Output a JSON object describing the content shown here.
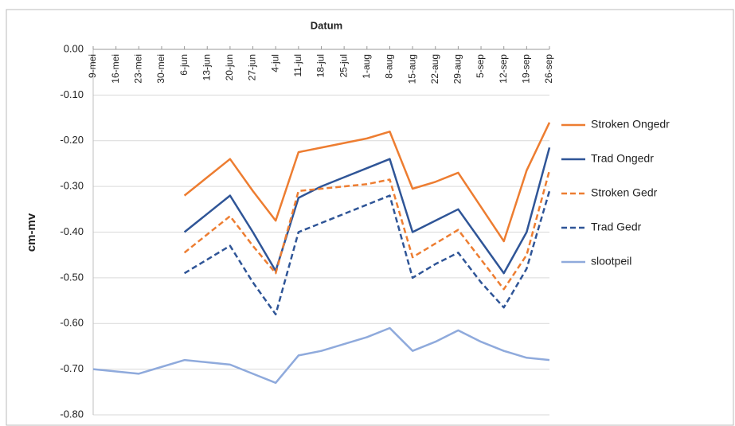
{
  "chart_data": {
    "type": "line",
    "x_label": "Datum",
    "y_label": "cm-mv",
    "categories": [
      "9-mei",
      "16-mei",
      "23-mei",
      "30-mei",
      "6-jun",
      "13-jun",
      "20-jun",
      "27-jun",
      "4-jul",
      "11-jul",
      "18-jul",
      "25-jul",
      "1-aug",
      "8-aug",
      "15-aug",
      "22-aug",
      "29-aug",
      "5-sep",
      "12-sep",
      "19-sep",
      "26-sep"
    ],
    "series": [
      {
        "name": "Stroken Ongedr",
        "color": "#ed7d31",
        "dash": false,
        "values": [
          null,
          null,
          null,
          null,
          -0.32,
          -0.28,
          -0.24,
          -0.31,
          -0.375,
          -0.225,
          -0.215,
          -0.205,
          -0.195,
          -0.18,
          -0.305,
          -0.29,
          -0.27,
          -0.345,
          -0.42,
          -0.265,
          -0.16
        ]
      },
      {
        "name": "Trad Ongedr",
        "color": "#2f5597",
        "dash": false,
        "values": [
          null,
          null,
          null,
          null,
          -0.4,
          -0.36,
          -0.32,
          -0.4,
          -0.485,
          -0.325,
          -0.3,
          -0.28,
          -0.26,
          -0.24,
          -0.4,
          -0.375,
          -0.35,
          -0.42,
          -0.49,
          -0.4,
          -0.215
        ]
      },
      {
        "name": "Stroken Gedr",
        "color": "#ed7d31",
        "dash": true,
        "values": [
          null,
          null,
          null,
          null,
          -0.445,
          -0.405,
          -0.365,
          -0.43,
          -0.49,
          -0.31,
          -0.305,
          -0.3,
          -0.295,
          -0.285,
          -0.455,
          -0.425,
          -0.395,
          -0.46,
          -0.525,
          -0.45,
          -0.265
        ]
      },
      {
        "name": "Trad Gedr",
        "color": "#2f5597",
        "dash": true,
        "values": [
          null,
          null,
          null,
          null,
          -0.49,
          -0.46,
          -0.43,
          -0.51,
          -0.58,
          -0.4,
          -0.38,
          -0.36,
          -0.34,
          -0.32,
          -0.5,
          -0.47,
          -0.445,
          -0.51,
          -0.565,
          -0.48,
          -0.31
        ]
      },
      {
        "name": "slootpeil",
        "color": "#8faadc",
        "dash": false,
        "values": [
          -0.7,
          -0.705,
          -0.71,
          -0.695,
          -0.68,
          -0.685,
          -0.69,
          -0.71,
          -0.73,
          -0.67,
          -0.66,
          -0.645,
          -0.63,
          -0.61,
          -0.66,
          -0.64,
          -0.615,
          -0.64,
          -0.66,
          -0.675,
          -0.68
        ]
      }
    ],
    "ylim": [
      -0.8,
      0
    ],
    "yticks": [
      {
        "value": 0,
        "label": "0.00"
      },
      {
        "value": -0.1,
        "label": "-0.10"
      },
      {
        "value": -0.2,
        "label": "-0.20"
      },
      {
        "value": -0.3,
        "label": "-0.30"
      },
      {
        "value": -0.4,
        "label": "-0.40"
      },
      {
        "value": -0.5,
        "label": "-0.50"
      },
      {
        "value": -0.6,
        "label": "-0.60"
      },
      {
        "value": -0.7,
        "label": "-0.70"
      },
      {
        "value": -0.8,
        "label": "-0.80"
      }
    ],
    "grid": true,
    "legend": "right"
  }
}
